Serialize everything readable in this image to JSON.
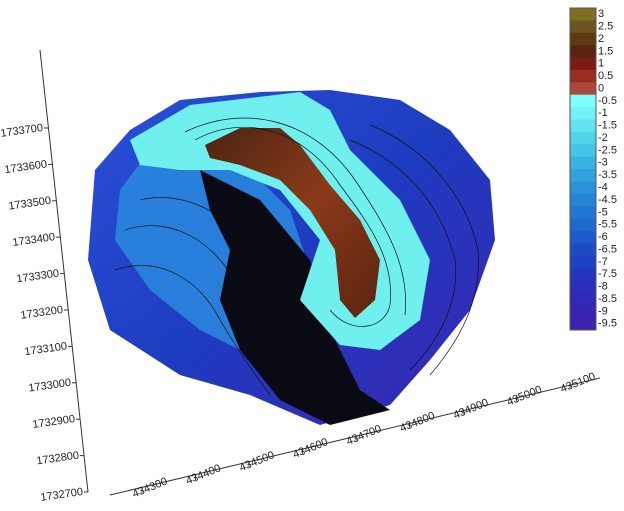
{
  "chart_data": {
    "type": "surface",
    "yticks": [
      1732700,
      1732800,
      1732900,
      1733000,
      1733100,
      1733200,
      1733300,
      1733400,
      1733500,
      1733600,
      1733700
    ],
    "xticks": [
      434300,
      434400,
      434500,
      434600,
      434700,
      434800,
      434900,
      435000,
      435100
    ],
    "colorbar": {
      "levels": [
        3,
        2.5,
        2,
        1.5,
        1,
        0.5,
        0,
        -0.5,
        -1,
        -1.5,
        -2,
        -2.5,
        -3,
        -3.5,
        -4,
        -4.5,
        -5,
        -5.5,
        -6,
        -6.5,
        -7,
        -7.5,
        -8,
        -8.5,
        -9,
        -9.5
      ],
      "colors": [
        "#7d7020",
        "#6e5420",
        "#5c3a14",
        "#5a2410",
        "#7a1c12",
        "#9a2c22",
        "#a84a3a",
        "#80ffff",
        "#70f2f6",
        "#60e4f0",
        "#50d4ea",
        "#44c4e6",
        "#38b2e2",
        "#30a2de",
        "#2a92da",
        "#2484d6",
        "#2076d2",
        "#1e68ce",
        "#1e5aca",
        "#1e4cc6",
        "#2040c2",
        "#2436be",
        "#2a2eba",
        "#3028b6",
        "#3624b2",
        "#3c22ae"
      ]
    }
  }
}
